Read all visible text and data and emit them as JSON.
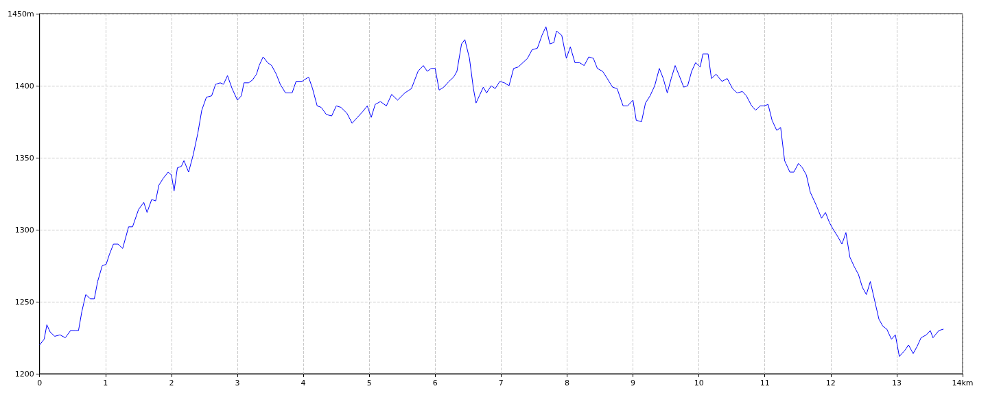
{
  "chart_data": {
    "type": "line",
    "x": [
      0,
      0.07,
      0.11,
      0.16,
      0.23,
      0.31,
      0.39,
      0.47,
      0.54,
      0.59,
      0.64,
      0.7,
      0.77,
      0.83,
      0.88,
      0.95,
      1.01,
      1.06,
      1.12,
      1.19,
      1.26,
      1.35,
      1.41,
      1.5,
      1.58,
      1.63,
      1.7,
      1.76,
      1.81,
      1.88,
      1.95,
      2,
      2.04,
      2.09,
      2.15,
      2.19,
      2.26,
      2.33,
      2.4,
      2.46,
      2.53,
      2.61,
      2.67,
      2.74,
      2.79,
      2.85,
      2.92,
      3,
      3.06,
      3.1,
      3.17,
      3.23,
      3.29,
      3.33,
      3.39,
      3.46,
      3.52,
      3.59,
      3.65,
      3.73,
      3.83,
      3.89,
      3.98,
      4.08,
      4.14,
      4.21,
      4.27,
      4.35,
      4.43,
      4.5,
      4.57,
      4.66,
      4.74,
      4.82,
      4.9,
      4.97,
      5.03,
      5.09,
      5.17,
      5.26,
      5.34,
      5.43,
      5.54,
      5.64,
      5.74,
      5.82,
      5.88,
      5.94,
      6,
      6.06,
      6.13,
      6.21,
      6.28,
      6.33,
      6.4,
      6.45,
      6.52,
      6.58,
      6.62,
      6.67,
      6.73,
      6.78,
      6.85,
      6.91,
      6.98,
      7.05,
      7.12,
      7.19,
      7.26,
      7.33,
      7.4,
      7.47,
      7.55,
      7.62,
      7.68,
      7.74,
      7.8,
      7.84,
      7.92,
      7.99,
      8.05,
      8.12,
      8.19,
      8.26,
      8.33,
      8.4,
      8.46,
      8.54,
      8.61,
      8.69,
      8.76,
      8.85,
      8.92,
      9,
      9.05,
      9.13,
      9.19,
      9.26,
      9.33,
      9.4,
      9.46,
      9.52,
      9.58,
      9.64,
      9.71,
      9.77,
      9.83,
      9.89,
      9.95,
      10.02,
      10.06,
      10.14,
      10.19,
      10.26,
      10.35,
      10.43,
      10.51,
      10.58,
      10.66,
      10.72,
      10.8,
      10.86,
      10.93,
      10.99,
      11.05,
      11.11,
      11.18,
      11.24,
      11.3,
      11.38,
      11.44,
      11.51,
      11.57,
      11.63,
      11.69,
      11.78,
      11.86,
      11.92,
      11.98,
      12.04,
      12.11,
      12.17,
      12.23,
      12.29,
      12.36,
      12.42,
      12.48,
      12.54,
      12.6,
      12.67,
      12.73,
      12.79,
      12.85,
      12.92,
      12.98,
      13.04,
      13.12,
      13.18,
      13.25,
      13.31,
      13.37,
      13.45,
      13.51,
      13.55,
      13.64,
      13.71
    ],
    "series": [
      {
        "color": "#0000ff",
        "values": [
          1220,
          1224,
          1234,
          1229,
          1226,
          1227,
          1225,
          1230,
          1230,
          1230,
          1243,
          1255,
          1252,
          1252,
          1264,
          1275,
          1276,
          1283,
          1290,
          1290,
          1287,
          1302,
          1302,
          1314,
          1319,
          1312,
          1321,
          1320,
          1331,
          1336,
          1340,
          1338,
          1327,
          1343,
          1344,
          1348,
          1340,
          1352,
          1367,
          1383,
          1392,
          1393,
          1401,
          1402,
          1401,
          1407,
          1398,
          1390,
          1393,
          1402,
          1402,
          1404,
          1408,
          1414,
          1420,
          1416,
          1414,
          1408,
          1401,
          1395,
          1395,
          1403,
          1403,
          1406,
          1398,
          1386,
          1385,
          1380,
          1379,
          1386,
          1385,
          1381,
          1374,
          1378,
          1382,
          1386,
          1378,
          1387,
          1389,
          1386,
          1394,
          1390,
          1395,
          1398,
          1410,
          1414,
          1410,
          1412,
          1412,
          1397,
          1399,
          1403,
          1406,
          1410,
          1429,
          1432,
          1419,
          1398,
          1388,
          1393,
          1399,
          1395,
          1400,
          1398,
          1403,
          1402,
          1400,
          1412,
          1413,
          1416,
          1419,
          1425,
          1426,
          1435,
          1441,
          1429,
          1430,
          1438,
          1435,
          1419,
          1427,
          1416,
          1416,
          1414,
          1420,
          1419,
          1412,
          1410,
          1405,
          1399,
          1398,
          1386,
          1386,
          1390,
          1376,
          1375,
          1388,
          1393,
          1400,
          1412,
          1405,
          1395,
          1405,
          1414,
          1406,
          1399,
          1400,
          1410,
          1416,
          1413,
          1422,
          1422,
          1405,
          1408,
          1403,
          1405,
          1398,
          1395,
          1396,
          1393,
          1386,
          1383,
          1386,
          1386,
          1387,
          1376,
          1369,
          1371,
          1348,
          1340,
          1340,
          1346,
          1343,
          1338,
          1326,
          1317,
          1308,
          1312,
          1305,
          1300,
          1295,
          1290,
          1298,
          1281,
          1274,
          1269,
          1260,
          1255,
          1264,
          1250,
          1238,
          1233,
          1231,
          1224,
          1227,
          1212,
          1216,
          1220,
          1214,
          1219,
          1225,
          1227,
          1230,
          1225,
          1230,
          1231
        ]
      }
    ],
    "xlim": [
      0,
      14
    ],
    "xticks": [
      0,
      1,
      2,
      3,
      4,
      5,
      6,
      7,
      8,
      9,
      10,
      11,
      12,
      13,
      {
        "value": 14,
        "label": "14km"
      }
    ],
    "ylim": [
      1200,
      1450
    ],
    "yticks": [
      1200,
      1250,
      1300,
      1350,
      1400,
      {
        "value": 1450,
        "label": "1450m"
      }
    ],
    "grid": true,
    "marker": "none",
    "line_style": "solid"
  }
}
